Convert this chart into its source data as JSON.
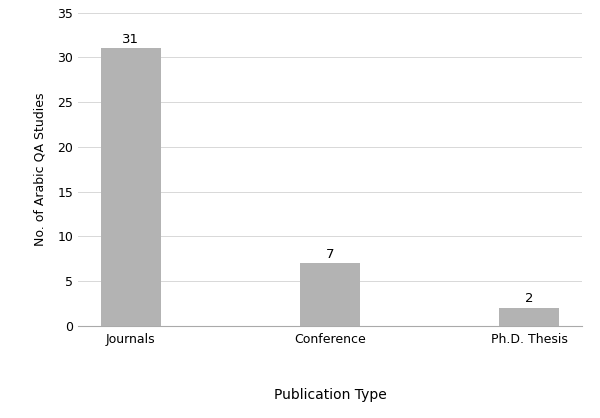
{
  "categories": [
    "Journals",
    "Conference",
    "Ph.D. Thesis"
  ],
  "values": [
    31,
    7,
    2
  ],
  "bar_color": "#b3b3b3",
  "bar_edgecolor": "#b3b3b3",
  "title": "",
  "xlabel": "Publication Type",
  "ylabel": "No. of Arabic QA Studies",
  "ylim": [
    0,
    35
  ],
  "yticks": [
    0,
    5,
    10,
    15,
    20,
    25,
    30,
    35
  ],
  "bar_width": 0.3,
  "annotation_fontsize": 9.5,
  "xlabel_fontsize": 10,
  "ylabel_fontsize": 9,
  "tick_fontsize": 9,
  "background_color": "#ffffff",
  "grid_color": "#d8d8d8"
}
